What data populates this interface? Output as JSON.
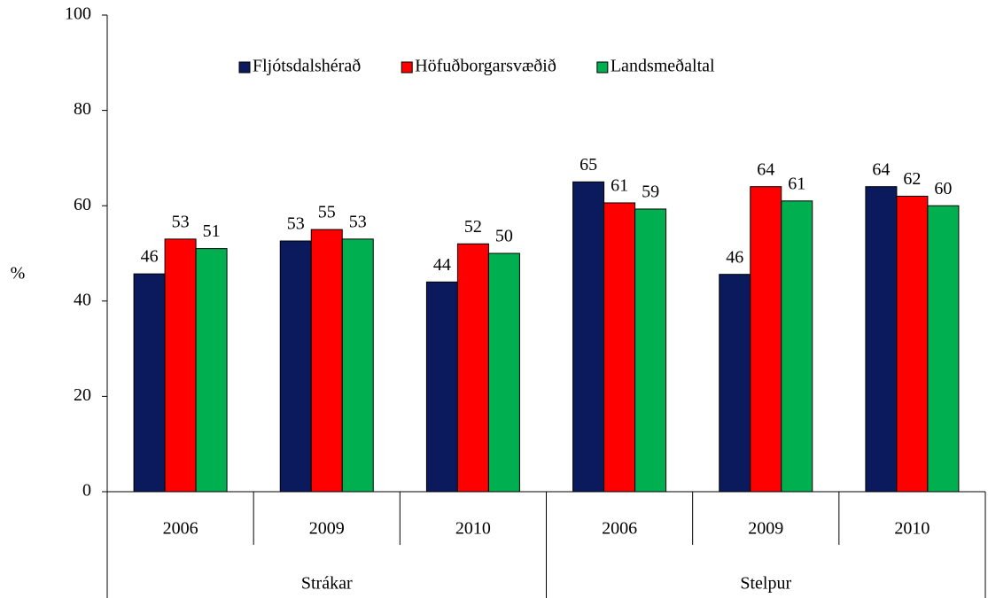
{
  "chart_data": {
    "type": "bar",
    "y_label": "%",
    "groups": [
      {
        "name": "Strákar",
        "categories": [
          "2006",
          "2009",
          "2010"
        ]
      },
      {
        "name": "Stelpur",
        "categories": [
          "2006",
          "2009",
          "2010"
        ]
      }
    ],
    "series": [
      {
        "name": "Fljótsdalshérað",
        "color": "#0a1a5c",
        "values": [
          45.7,
          52.6,
          44,
          65,
          45.6,
          64
        ],
        "value_labels": [
          "46",
          "53",
          "44",
          "65",
          "46",
          "64"
        ]
      },
      {
        "name": "Höfuðborgarsvæðið",
        "color": "#ff0000",
        "values": [
          53,
          55,
          52,
          60.6,
          64,
          62
        ],
        "value_labels": [
          "53",
          "55",
          "52",
          "61",
          "64",
          "62"
        ]
      },
      {
        "name": "Landsmeðaltal",
        "color": "#00b050",
        "values": [
          51,
          53,
          50,
          59.3,
          61,
          60
        ],
        "value_labels": [
          "51",
          "53",
          "50",
          "59",
          "61",
          "60"
        ]
      }
    ],
    "ylim": [
      0,
      100
    ],
    "yticks": [
      0,
      20,
      40,
      60,
      80,
      100
    ],
    "legend": "top"
  }
}
